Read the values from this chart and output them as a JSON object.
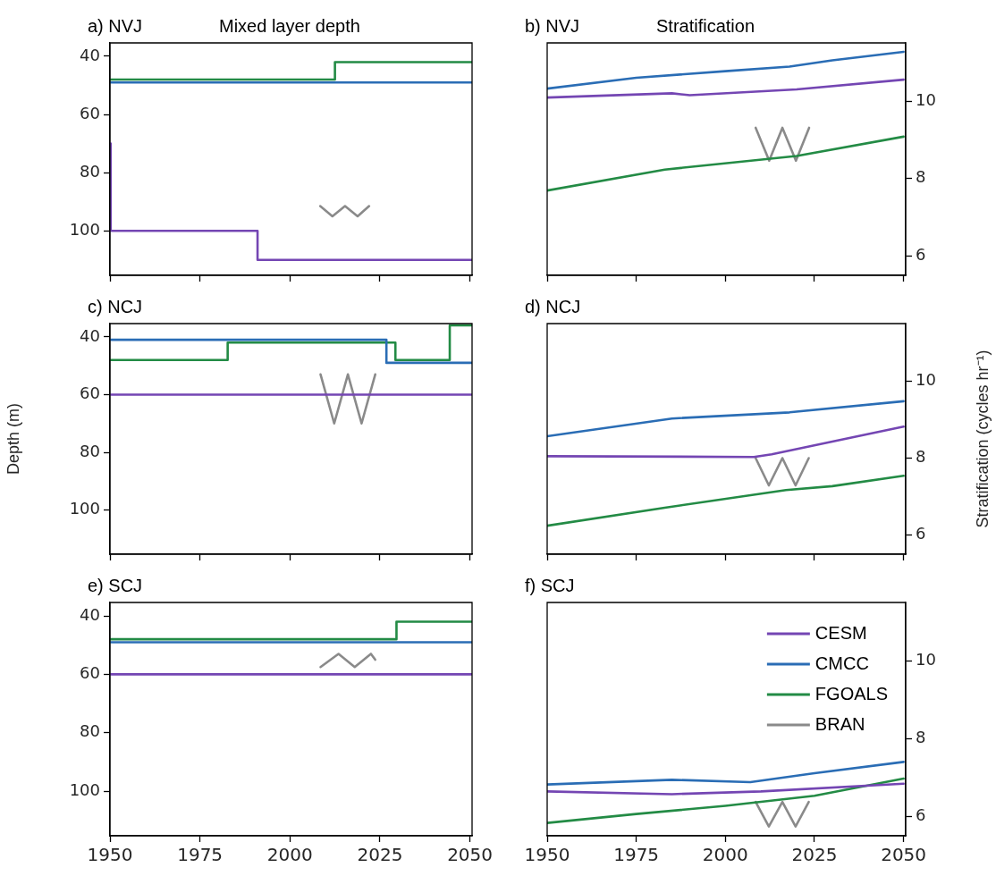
{
  "chart_data": [
    {
      "type": "step",
      "title": "a) NVJ",
      "subtitle": "Mixed layer depth",
      "xlim": [
        1950,
        2050.6
      ],
      "xticks": [
        1950,
        1975,
        2000,
        2025,
        2050
      ],
      "ylim": [
        115.3,
        35.4
      ],
      "yticks": [
        40,
        60,
        80,
        100
      ],
      "tick_labels": "y",
      "series": [
        {
          "color": "#7446b3",
          "x": [
            1950,
            1950.2,
            1991,
            2050.5
          ],
          "values": [
            70,
            100,
            110,
            110
          ]
        },
        {
          "color": "#2a6db5",
          "x": [
            1950,
            2050.5
          ],
          "values": [
            49,
            49
          ]
        },
        {
          "color": "#238b45",
          "x": [
            1950,
            2012.5,
            2050.5
          ],
          "values": [
            48,
            42,
            42
          ]
        },
        {
          "type": "line",
          "color": "#8a8a8a",
          "x": [
            2008.4,
            2011.8,
            2015.3,
            2018.8,
            2022
          ],
          "values": [
            91.5,
            95,
            91.5,
            95,
            91.5
          ]
        }
      ]
    },
    {
      "type": "line",
      "title": "b) NVJ",
      "subtitle": "Stratification",
      "xlim": [
        1950,
        2050.6
      ],
      "xticks": [
        1950,
        1975,
        2000,
        2025,
        2050
      ],
      "ylim": [
        5.5,
        11.5
      ],
      "yticks": [
        6,
        8,
        10
      ],
      "tick_labels": "y",
      "series": [
        {
          "color": "#7446b3",
          "x": [
            1950,
            1985,
            1990,
            2020,
            2050
          ],
          "values": [
            10.09,
            10.2,
            10.15,
            10.3,
            10.55
          ]
        },
        {
          "color": "#2a6db5",
          "x": [
            1950,
            1975,
            2000,
            2018,
            2030,
            2050
          ],
          "values": [
            10.32,
            10.6,
            10.77,
            10.89,
            11.05,
            11.27
          ]
        },
        {
          "color": "#238b45",
          "x": [
            1950,
            1983,
            2020,
            2050
          ],
          "values": [
            7.69,
            8.23,
            8.58,
            9.08
          ]
        },
        {
          "color": "#8a8a8a",
          "x": [
            2008.5,
            2012.3,
            2016,
            2019.8,
            2023.5
          ],
          "values": [
            9.31,
            8.46,
            9.31,
            8.46,
            9.31
          ]
        }
      ]
    },
    {
      "type": "step",
      "title": "c) NCJ",
      "ylabel": "Depth (m)",
      "xlim": [
        1950,
        2050.6
      ],
      "xticks": [
        1950,
        1975,
        2000,
        2025,
        2050
      ],
      "ylim": [
        115.3,
        35.4
      ],
      "yticks": [
        40,
        60,
        80,
        100
      ],
      "tick_labels": "y",
      "series": [
        {
          "color": "#7446b3",
          "x": [
            1950,
            2050.5
          ],
          "values": [
            60,
            60
          ]
        },
        {
          "color": "#2a6db5",
          "x": [
            1950,
            2026.8,
            2050.5
          ],
          "values": [
            41,
            49,
            49
          ]
        },
        {
          "color": "#238b45",
          "x": [
            1950,
            1982.7,
            2029.3,
            2044.4,
            2050.5
          ],
          "values": [
            48,
            42,
            48,
            36,
            36
          ]
        },
        {
          "type": "line",
          "color": "#8a8a8a",
          "x": [
            2008.5,
            2012.3,
            2016.1,
            2019.9,
            2023.7
          ],
          "values": [
            53,
            70,
            53,
            70,
            53
          ]
        }
      ]
    },
    {
      "type": "line",
      "title": "d) NCJ",
      "ylabel": "Stratification (cycles hr⁻¹)",
      "xlim": [
        1950,
        2050.6
      ],
      "xticks": [
        1950,
        1975,
        2000,
        2025,
        2050
      ],
      "ylim": [
        5.5,
        11.5
      ],
      "yticks": [
        6,
        8,
        10
      ],
      "tick_labels": "y",
      "series": [
        {
          "color": "#7446b3",
          "x": [
            1950,
            2008,
            2013,
            2050
          ],
          "values": [
            8.05,
            8.03,
            8.1,
            8.82
          ]
        },
        {
          "color": "#2a6db5",
          "x": [
            1950,
            1985,
            2018,
            2050
          ],
          "values": [
            8.57,
            9.03,
            9.19,
            9.48
          ]
        },
        {
          "color": "#238b45",
          "x": [
            1950,
            1983,
            2017,
            2030,
            2050
          ],
          "values": [
            6.24,
            6.71,
            7.17,
            7.27,
            7.54
          ]
        },
        {
          "color": "#8a8a8a",
          "x": [
            2008.5,
            2012.2,
            2016,
            2019.7,
            2023.4
          ],
          "values": [
            8.0,
            7.29,
            8.0,
            7.29,
            8.0
          ]
        }
      ]
    },
    {
      "type": "step",
      "title": "e) SCJ",
      "xlim": [
        1950,
        2050.6
      ],
      "xticks": [
        1950,
        1975,
        2000,
        2025,
        2050
      ],
      "ylim": [
        115.3,
        35.4
      ],
      "yticks": [
        40,
        60,
        80,
        100
      ],
      "series": [
        {
          "color": "#7446b3",
          "x": [
            1950,
            2050.5
          ],
          "values": [
            60,
            60
          ]
        },
        {
          "color": "#2a6db5",
          "x": [
            1950,
            2050.5
          ],
          "values": [
            49,
            49
          ]
        },
        {
          "color": "#238b45",
          "x": [
            1950,
            2029.6,
            2050.5
          ],
          "values": [
            48,
            42,
            42
          ]
        },
        {
          "type": "line",
          "color": "#8a8a8a",
          "x": [
            2008.5,
            2013.5,
            2018,
            2022.5,
            2023.7
          ],
          "values": [
            57.5,
            53,
            57.5,
            53,
            55
          ]
        }
      ]
    },
    {
      "type": "line",
      "title": "f) SCJ",
      "xlim": [
        1950,
        2050.6
      ],
      "xticks": [
        1950,
        1975,
        2000,
        2025,
        2050
      ],
      "ylim": [
        5.5,
        11.5
      ],
      "yticks": [
        6,
        8,
        10
      ],
      "legend": "top right",
      "series": [
        {
          "name": "CESM",
          "color": "#7446b3",
          "x": [
            1950,
            1985,
            2010,
            2050
          ],
          "values": [
            6.64,
            6.57,
            6.64,
            6.84
          ]
        },
        {
          "name": "CMCC",
          "color": "#2a6db5",
          "x": [
            1950,
            1985,
            2007,
            2025,
            2050
          ],
          "values": [
            6.82,
            6.94,
            6.88,
            7.11,
            7.4
          ]
        },
        {
          "name": "FGOALS",
          "color": "#238b45",
          "x": [
            1950,
            1975,
            2000,
            2025,
            2050
          ],
          "values": [
            5.83,
            6.06,
            6.27,
            6.53,
            6.97
          ]
        },
        {
          "name": "BRAN",
          "color": "#8a8a8a",
          "x": [
            2008.5,
            2012.2,
            2016,
            2019.7,
            2023.4
          ],
          "values": [
            6.37,
            5.74,
            6.37,
            5.74,
            6.37
          ]
        }
      ]
    }
  ]
}
